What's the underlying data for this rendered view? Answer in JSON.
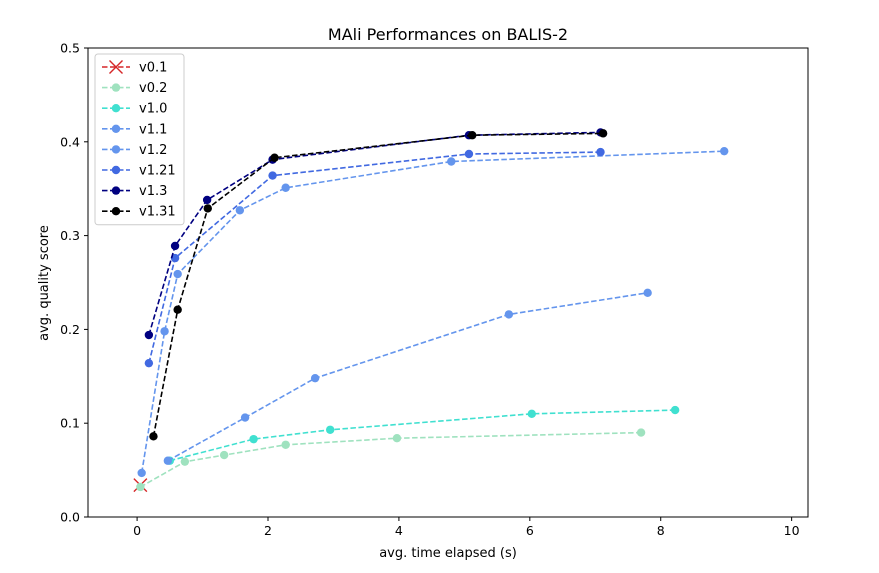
{
  "chart_data": {
    "type": "line",
    "title": "MAli Performances on BALIS-2",
    "xlabel": "avg. time elapsed (s)",
    "ylabel": "avg. quality score",
    "xlim": [
      -0.75,
      10.25
    ],
    "ylim": [
      0,
      0.5
    ],
    "xticks": [
      0,
      2,
      4,
      6,
      8,
      10
    ],
    "xtick_labels": [
      "0",
      "2",
      "4",
      "6",
      "8",
      "10"
    ],
    "yticks": [
      0,
      0.1,
      0.2,
      0.3,
      0.4,
      0.5
    ],
    "ytick_labels": [
      "0.0",
      "0.1",
      "0.2",
      "0.3",
      "0.4",
      "0.5"
    ],
    "grid": false,
    "legend_position": "upper-left",
    "series": [
      {
        "name": "v0.1",
        "color": "#d62728",
        "marker": "x",
        "x": [
          0.05
        ],
        "y": [
          0.034
        ]
      },
      {
        "name": "v0.2",
        "color": "#9fe2bf",
        "marker": "o",
        "x": [
          0.05,
          0.73,
          1.33,
          2.27,
          3.97,
          7.7
        ],
        "y": [
          0.032,
          0.059,
          0.066,
          0.077,
          0.084,
          0.09
        ]
      },
      {
        "name": "v1.0",
        "color": "#40e0d0",
        "marker": "o",
        "x": [
          0.5,
          1.78,
          2.95,
          6.03,
          8.22
        ],
        "y": [
          0.06,
          0.083,
          0.093,
          0.11,
          0.114
        ]
      },
      {
        "name": "v1.1",
        "color": "#6495ed",
        "marker": "o",
        "x": [
          0.47,
          1.65,
          2.72,
          5.68,
          7.8
        ],
        "y": [
          0.06,
          0.106,
          0.148,
          0.216,
          0.239
        ]
      },
      {
        "name": "v1.2",
        "color": "#6495ed",
        "marker": "o",
        "x": [
          0.07,
          0.42,
          0.62,
          1.57,
          2.27,
          4.8,
          8.97
        ],
        "y": [
          0.047,
          0.198,
          0.259,
          0.327,
          0.351,
          0.379,
          0.39
        ]
      },
      {
        "name": "v1.21",
        "color": "#4169e1",
        "marker": "o",
        "x": [
          0.18,
          0.58,
          2.07,
          5.07,
          7.08
        ],
        "y": [
          0.164,
          0.276,
          0.364,
          0.387,
          0.389
        ]
      },
      {
        "name": "v1.3",
        "color": "#000080",
        "marker": "o",
        "x": [
          0.18,
          0.58,
          1.07,
          2.07,
          5.07,
          7.08
        ],
        "y": [
          0.194,
          0.289,
          0.338,
          0.381,
          0.407,
          0.41
        ]
      },
      {
        "name": "v1.31",
        "color": "#000000",
        "marker": "o",
        "x": [
          0.25,
          0.62,
          1.08,
          2.1,
          5.12,
          7.12
        ],
        "y": [
          0.086,
          0.221,
          0.329,
          0.383,
          0.407,
          0.409
        ]
      }
    ]
  }
}
